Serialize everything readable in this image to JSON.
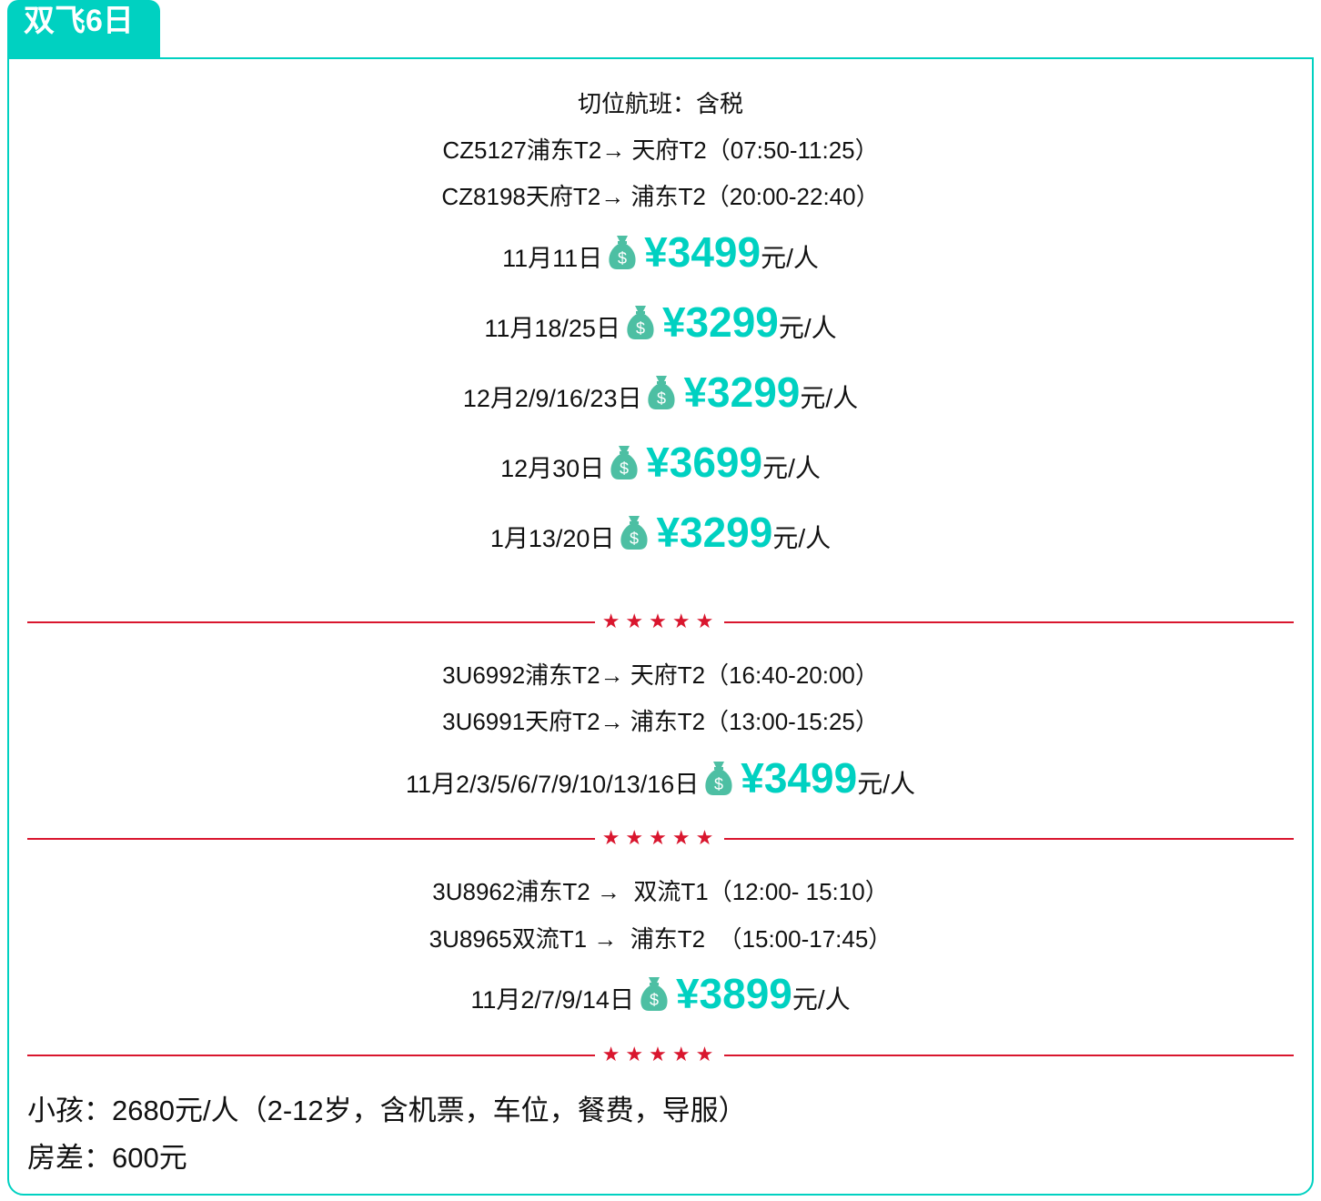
{
  "tab_title": "双飞6日",
  "section1": {
    "header": "切位航班：含税",
    "flights": [
      "CZ5127浦东T2→ 天府T2（07:50-11:25）",
      "CZ8198天府T2→ 浦东T2（20:00-22:40）"
    ],
    "prices": [
      {
        "date": "11月11日",
        "price": "¥3499",
        "unit": "元/人"
      },
      {
        "date": "11月18/25日",
        "price": "¥3299",
        "unit": "元/人"
      },
      {
        "date": "12月2/9/16/23日",
        "price": "¥3299",
        "unit": "元/人"
      },
      {
        "date": "12月30日",
        "price": "¥3699",
        "unit": "元/人"
      },
      {
        "date": "1月13/20日",
        "price": "¥3299",
        "unit": "元/人"
      }
    ]
  },
  "section2": {
    "flights": [
      "3U6992浦东T2→ 天府T2（16:40-20:00）",
      "3U6991天府T2→ 浦东T2（13:00-15:25）"
    ],
    "prices": [
      {
        "date": "11月2/3/5/6/7/9/10/13/16日",
        "price": "¥3499",
        "unit": "元/人"
      }
    ]
  },
  "section3": {
    "flights": [
      "3U8962浦东T2 →  双流T1（12:00- 15:10）",
      "3U8965双流T1 →  浦东T2  （15:00-17:45）"
    ],
    "prices": [
      {
        "date": "11月2/7/9/14日",
        "price": "¥3899",
        "unit": "元/人"
      }
    ]
  },
  "divider_stars": "★★★★★",
  "notes": [
    "小孩：2680元/人（2-12岁，含机票，车位，餐费，导服）",
    "房差：600元"
  ],
  "icons": {
    "price": "money-bag-icon"
  },
  "colors": {
    "accent": "#00d1c1",
    "divider": "#d9162e",
    "bag": "#4dbfa3"
  }
}
